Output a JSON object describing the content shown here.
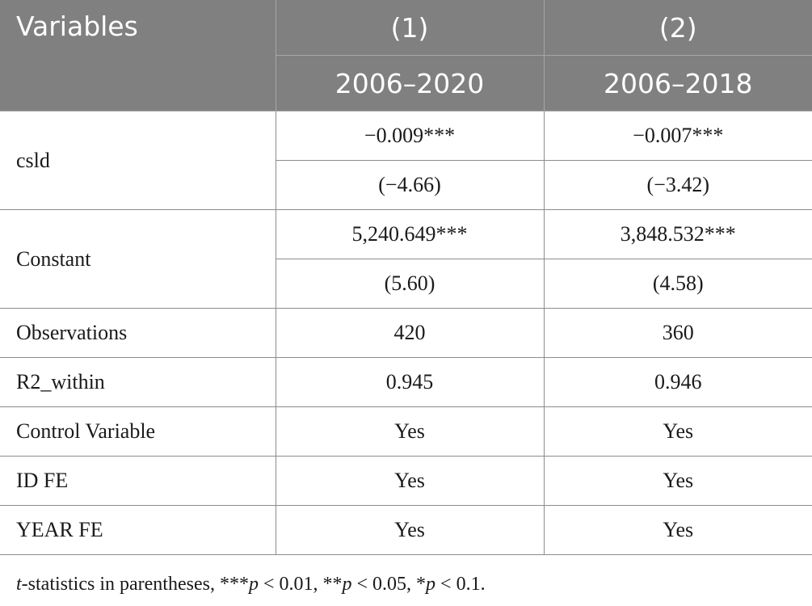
{
  "table": {
    "header": {
      "variables_label": "Variables",
      "col1_number": "(1)",
      "col2_number": "(2)",
      "col1_period": "2006–2020",
      "col2_period": "2006–2018"
    },
    "rows": [
      {
        "label": "csld",
        "col1_coef": "−0.009***",
        "col2_coef": "−0.007***",
        "col1_t": "(−4.66)",
        "col2_t": "(−3.42)"
      },
      {
        "label": "Constant",
        "col1_coef": "5,240.649***",
        "col2_coef": "3,848.532***",
        "col1_t": "(5.60)",
        "col2_t": "(4.58)"
      }
    ],
    "stats": [
      {
        "label": "Observations",
        "col1": "420",
        "col2": "360"
      },
      {
        "label": "R2_within",
        "col1": "0.945",
        "col2": "0.946"
      },
      {
        "label": "Control Variable",
        "col1": "Yes",
        "col2": "Yes"
      },
      {
        "label": "ID FE",
        "col1": "Yes",
        "col2": "Yes"
      },
      {
        "label": "YEAR FE",
        "col1": "Yes",
        "col2": "Yes"
      }
    ]
  },
  "note": {
    "t": "t",
    "s1": "-statistics in parentheses, ***",
    "p1": "p",
    "s2": " < 0.01, **",
    "p2": "p",
    "s3": " < 0.05, *",
    "p3": "p",
    "s4": " < 0.1."
  }
}
